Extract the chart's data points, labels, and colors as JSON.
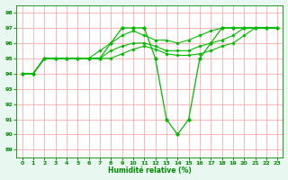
{
  "xlabel": "Humidité relative (%)",
  "bg_color": "#e8f8f0",
  "plot_bg_color": "#ffffff",
  "grid_color": "#ffaaaa",
  "line_color": "#00bb00",
  "tick_color": "#008800",
  "ylim": [
    88.5,
    98.5
  ],
  "xlim": [
    -0.5,
    23.5
  ],
  "yticks": [
    89,
    90,
    91,
    92,
    93,
    94,
    95,
    96,
    97,
    98
  ],
  "xticks": [
    0,
    1,
    2,
    3,
    4,
    5,
    6,
    7,
    8,
    9,
    10,
    11,
    12,
    13,
    14,
    15,
    16,
    17,
    18,
    19,
    20,
    21,
    22,
    23
  ],
  "lines": [
    {
      "x": [
        0,
        1,
        2,
        3,
        4,
        5,
        6,
        7,
        8,
        9,
        10,
        11,
        12,
        13,
        14,
        15,
        16,
        17,
        18,
        19,
        20,
        21,
        22,
        23
      ],
      "y": [
        94,
        94,
        95,
        95,
        95,
        95,
        95,
        95,
        96,
        97,
        97,
        97,
        95,
        91,
        90,
        91,
        95,
        96,
        97,
        97,
        97,
        97,
        97,
        97
      ],
      "marker": "D",
      "markersize": 2.0,
      "lw": 0.9
    },
    {
      "x": [
        0,
        1,
        2,
        3,
        4,
        5,
        6,
        7,
        8,
        9,
        10,
        11,
        12,
        13,
        14,
        15,
        16,
        17,
        18,
        19,
        20,
        21,
        22,
        23
      ],
      "y": [
        94,
        94,
        95,
        95,
        95,
        95,
        95,
        95.5,
        96,
        96.5,
        96.8,
        96.5,
        96.2,
        96.2,
        96,
        96.2,
        96.5,
        96.8,
        97,
        97,
        97,
        97,
        97,
        97
      ],
      "marker": "D",
      "markersize": 1.5,
      "lw": 0.8
    },
    {
      "x": [
        0,
        1,
        2,
        3,
        4,
        5,
        6,
        7,
        8,
        9,
        10,
        11,
        12,
        13,
        14,
        15,
        16,
        17,
        18,
        19,
        20,
        21,
        22,
        23
      ],
      "y": [
        94,
        94,
        95,
        95,
        95,
        95,
        95,
        95,
        95.5,
        95.8,
        96,
        96,
        95.8,
        95.5,
        95.5,
        95.5,
        95.8,
        96,
        96.2,
        96.5,
        97,
        97,
        97,
        97
      ],
      "marker": "D",
      "markersize": 1.5,
      "lw": 0.8
    },
    {
      "x": [
        0,
        1,
        2,
        3,
        4,
        5,
        6,
        7,
        8,
        9,
        10,
        11,
        12,
        13,
        14,
        15,
        16,
        17,
        18,
        19,
        20,
        21,
        22,
        23
      ],
      "y": [
        94,
        94,
        95,
        95,
        95,
        95,
        95,
        95,
        95,
        95.3,
        95.6,
        95.8,
        95.6,
        95.3,
        95.2,
        95.2,
        95.3,
        95.5,
        95.8,
        96,
        96.5,
        97,
        97,
        97
      ],
      "marker": "D",
      "markersize": 1.5,
      "lw": 0.8
    }
  ]
}
